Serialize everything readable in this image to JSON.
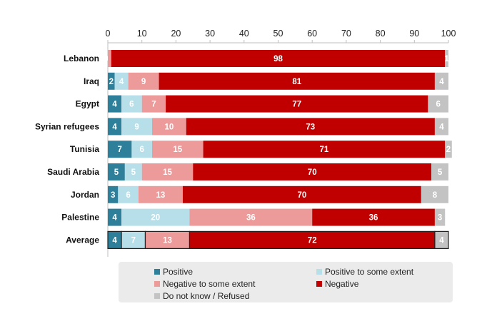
{
  "chart_data": {
    "type": "bar",
    "orientation": "horizontal",
    "stacked": true,
    "xlim": [
      0,
      100
    ],
    "x_ticks": [
      "0",
      "10",
      "20",
      "30",
      "40",
      "50",
      "60",
      "70",
      "80",
      "90",
      "100"
    ],
    "categories": [
      "Lebanon",
      "Iraq",
      "Egypt",
      "Syrian refugees",
      "Tunisia",
      "Saudi Arabia",
      "Jordan",
      "Palestine",
      "Average"
    ],
    "highlighted_category": "Average",
    "series": [
      {
        "name": "Positive",
        "color": "#2e7f99",
        "label_color": "#ffffff",
        "values": [
          0,
          2,
          4,
          4,
          7,
          5,
          3,
          4,
          4
        ]
      },
      {
        "name": "Positive to some extent",
        "color": "#b6dfe9",
        "label_color": "#ffffff",
        "values": [
          0,
          4,
          6,
          9,
          6,
          5,
          6,
          20,
          7
        ]
      },
      {
        "name": "Negative to some extent",
        "color": "#ec9a9a",
        "label_color": "#ffffff",
        "values": [
          1,
          9,
          7,
          10,
          15,
          15,
          13,
          36,
          13
        ]
      },
      {
        "name": "Negative",
        "color": "#c00000",
        "label_color": "#ffffff",
        "values": [
          98,
          81,
          77,
          73,
          71,
          70,
          70,
          36,
          72
        ]
      },
      {
        "name": "Do not know / Refused",
        "color": "#c3c3c3",
        "label_color": "#ffffff",
        "values": [
          1,
          4,
          6,
          4,
          2,
          5,
          8,
          3,
          4
        ]
      }
    ],
    "legend_position": "bottom"
  }
}
